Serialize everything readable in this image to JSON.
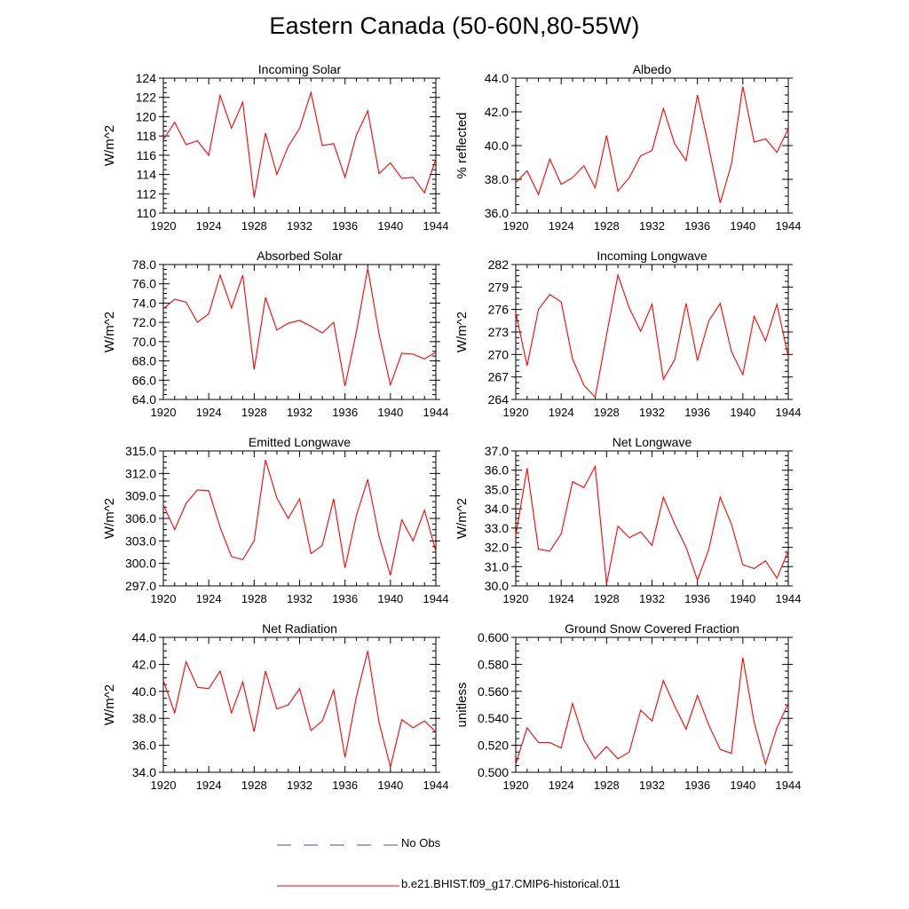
{
  "title": "Eastern Canada (50-60N,80-55W)",
  "legend": [
    {
      "label": "No Obs",
      "color": "#4a4aa8",
      "style": "dashed"
    },
    {
      "label": "b.e21.BHIST.f09_g17.CMIP6-historical.011",
      "color": "#ff0000",
      "style": "solid"
    }
  ],
  "chart_data": [
    {
      "type": "line",
      "title": "Incoming Solar",
      "ylabel": "W/m^2",
      "xlim": [
        1920,
        1944
      ],
      "ylim": [
        110,
        124
      ],
      "xticks": [
        "1920",
        "1924",
        "1928",
        "1932",
        "1936",
        "1940",
        "1944"
      ],
      "yticks": [
        "110",
        "112",
        "114",
        "116",
        "118",
        "120",
        "122",
        "124"
      ],
      "x": [
        1920,
        1921,
        1922,
        1923,
        1924,
        1925,
        1926,
        1927,
        1928,
        1929,
        1930,
        1931,
        1932,
        1933,
        1934,
        1935,
        1936,
        1937,
        1938,
        1939,
        1940,
        1941,
        1942,
        1943,
        1944
      ],
      "series": [
        {
          "name": "b.e21.BHIST.f09_g17.CMIP6-historical.011",
          "color": "#ff0000",
          "values": [
            117.6,
            119.4,
            117.1,
            117.5,
            116.0,
            122.2,
            118.8,
            121.5,
            111.6,
            118.3,
            114.0,
            116.9,
            118.8,
            122.5,
            117.0,
            117.2,
            113.7,
            118.1,
            120.6,
            114.1,
            115.2,
            113.6,
            113.7,
            112.1,
            115.6
          ]
        }
      ]
    },
    {
      "type": "line",
      "title": "Albedo",
      "ylabel": "% reflected",
      "xlim": [
        1920,
        1944
      ],
      "ylim": [
        36,
        44
      ],
      "xticks": [
        "1920",
        "1924",
        "1928",
        "1932",
        "1936",
        "1940",
        "1944"
      ],
      "yticks": [
        "36.0",
        "38.0",
        "40.0",
        "42.0",
        "44.0"
      ],
      "x": [
        1920,
        1921,
        1922,
        1923,
        1924,
        1925,
        1926,
        1927,
        1928,
        1929,
        1930,
        1931,
        1932,
        1933,
        1934,
        1935,
        1936,
        1937,
        1938,
        1939,
        1940,
        1941,
        1942,
        1943,
        1944
      ],
      "series": [
        {
          "name": "b.e21.BHIST.f09_g17.CMIP6-historical.011",
          "color": "#ff0000",
          "values": [
            37.8,
            38.5,
            37.1,
            39.2,
            37.7,
            38.1,
            38.8,
            37.5,
            40.6,
            37.3,
            38.1,
            39.4,
            39.7,
            42.2,
            40.1,
            39.1,
            43.0,
            39.9,
            36.6,
            38.9,
            43.5,
            40.2,
            40.4,
            39.6,
            41.0
          ]
        }
      ]
    },
    {
      "type": "line",
      "title": "Absorbed Solar",
      "ylabel": "W/m^2",
      "xlim": [
        1920,
        1944
      ],
      "ylim": [
        64,
        78
      ],
      "xticks": [
        "1920",
        "1924",
        "1928",
        "1932",
        "1936",
        "1940",
        "1944"
      ],
      "yticks": [
        "64.0",
        "66.0",
        "68.0",
        "70.0",
        "72.0",
        "74.0",
        "76.0",
        "78.0"
      ],
      "x": [
        1920,
        1921,
        1922,
        1923,
        1924,
        1925,
        1926,
        1927,
        1928,
        1929,
        1930,
        1931,
        1932,
        1933,
        1934,
        1935,
        1936,
        1937,
        1938,
        1939,
        1940,
        1941,
        1942,
        1943,
        1944
      ],
      "series": [
        {
          "name": "b.e21.BHIST.f09_g17.CMIP6-historical.011",
          "color": "#ff0000",
          "values": [
            73.4,
            74.4,
            74.1,
            72.0,
            72.9,
            76.9,
            73.5,
            76.9,
            67.1,
            74.6,
            71.2,
            71.9,
            72.2,
            71.6,
            70.9,
            72.0,
            65.4,
            71.0,
            77.6,
            70.8,
            65.5,
            68.8,
            68.7,
            68.2,
            68.9
          ]
        }
      ]
    },
    {
      "type": "line",
      "title": "Incoming Longwave",
      "ylabel": "W/m^2",
      "xlim": [
        1920,
        1944
      ],
      "ylim": [
        264,
        282
      ],
      "xticks": [
        "1920",
        "1924",
        "1928",
        "1932",
        "1936",
        "1940",
        "1944"
      ],
      "yticks": [
        "264",
        "267",
        "270",
        "273",
        "276",
        "279",
        "282"
      ],
      "x": [
        1920,
        1921,
        1922,
        1923,
        1924,
        1925,
        1926,
        1927,
        1928,
        1929,
        1930,
        1931,
        1932,
        1933,
        1934,
        1935,
        1936,
        1937,
        1938,
        1939,
        1940,
        1941,
        1942,
        1943,
        1944
      ],
      "series": [
        {
          "name": "b.e21.BHIST.f09_g17.CMIP6-historical.011",
          "color": "#ff0000",
          "values": [
            275.6,
            268.5,
            276.0,
            278.0,
            277.0,
            269.4,
            265.9,
            264.3,
            272.6,
            280.6,
            276.2,
            273.1,
            276.7,
            266.7,
            269.3,
            276.8,
            269.2,
            274.5,
            276.8,
            270.4,
            267.3,
            275.1,
            271.8,
            276.7,
            269.7
          ]
        }
      ]
    },
    {
      "type": "line",
      "title": "Emitted Longwave",
      "ylabel": "W/m^2",
      "xlim": [
        1920,
        1944
      ],
      "ylim": [
        297,
        315
      ],
      "xticks": [
        "1920",
        "1924",
        "1928",
        "1932",
        "1936",
        "1940",
        "1944"
      ],
      "yticks": [
        "297.0",
        "300.0",
        "303.0",
        "306.0",
        "309.0",
        "312.0",
        "315.0"
      ],
      "x": [
        1920,
        1921,
        1922,
        1923,
        1924,
        1925,
        1926,
        1927,
        1928,
        1929,
        1930,
        1931,
        1932,
        1933,
        1934,
        1935,
        1936,
        1937,
        1938,
        1939,
        1940,
        1941,
        1942,
        1943,
        1944
      ],
      "series": [
        {
          "name": "b.e21.BHIST.f09_g17.CMIP6-historical.011",
          "color": "#ff0000",
          "values": [
            307.8,
            304.5,
            308.0,
            309.8,
            309.7,
            304.8,
            300.9,
            300.5,
            303.0,
            313.8,
            308.7,
            306.0,
            308.6,
            301.3,
            302.4,
            308.6,
            299.4,
            306.4,
            311.2,
            303.6,
            298.4,
            305.8,
            303.0,
            307.1,
            301.6
          ]
        }
      ]
    },
    {
      "type": "line",
      "title": "Net Longwave",
      "ylabel": "W/m^2",
      "xlim": [
        1920,
        1944
      ],
      "ylim": [
        30,
        37
      ],
      "xticks": [
        "1920",
        "1924",
        "1928",
        "1932",
        "1936",
        "1940",
        "1944"
      ],
      "yticks": [
        "30.0",
        "31.0",
        "32.0",
        "33.0",
        "34.0",
        "35.0",
        "36.0",
        "37.0"
      ],
      "x": [
        1920,
        1921,
        1922,
        1923,
        1924,
        1925,
        1926,
        1927,
        1928,
        1929,
        1930,
        1931,
        1932,
        1933,
        1934,
        1935,
        1936,
        1937,
        1938,
        1939,
        1940,
        1941,
        1942,
        1943,
        1944
      ],
      "series": [
        {
          "name": "b.e21.BHIST.f09_g17.CMIP6-historical.011",
          "color": "#ff0000",
          "values": [
            32.6,
            36.1,
            31.9,
            31.8,
            32.7,
            35.4,
            35.1,
            36.2,
            30.1,
            33.1,
            32.5,
            32.8,
            32.1,
            34.6,
            33.2,
            32.0,
            30.3,
            31.9,
            34.6,
            33.2,
            31.1,
            30.9,
            31.3,
            30.4,
            31.8
          ]
        }
      ]
    },
    {
      "type": "line",
      "title": "Net Radiation",
      "ylabel": "W/m^2",
      "xlim": [
        1920,
        1944
      ],
      "ylim": [
        34,
        44
      ],
      "xticks": [
        "1920",
        "1924",
        "1928",
        "1932",
        "1936",
        "1940",
        "1944"
      ],
      "yticks": [
        "34.0",
        "36.0",
        "38.0",
        "40.0",
        "42.0",
        "44.0"
      ],
      "x": [
        1920,
        1921,
        1922,
        1923,
        1924,
        1925,
        1926,
        1927,
        1928,
        1929,
        1930,
        1931,
        1932,
        1933,
        1934,
        1935,
        1936,
        1937,
        1938,
        1939,
        1940,
        1941,
        1942,
        1943,
        1944
      ],
      "series": [
        {
          "name": "b.e21.BHIST.f09_g17.CMIP6-historical.011",
          "color": "#ff0000",
          "values": [
            40.8,
            38.4,
            42.2,
            40.3,
            40.2,
            41.5,
            38.4,
            40.7,
            37.0,
            41.5,
            38.7,
            39.0,
            40.2,
            37.1,
            37.8,
            40.1,
            35.1,
            39.6,
            43.0,
            37.7,
            34.4,
            37.9,
            37.3,
            37.8,
            37.0
          ]
        }
      ]
    },
    {
      "type": "line",
      "title": "Ground Snow Covered Fraction",
      "ylabel": "unitless",
      "xlim": [
        1920,
        1944
      ],
      "ylim": [
        0.5,
        0.6
      ],
      "xticks": [
        "1920",
        "1924",
        "1928",
        "1932",
        "1936",
        "1940",
        "1944"
      ],
      "yticks": [
        "0.500",
        "0.520",
        "0.540",
        "0.560",
        "0.580",
        "0.600"
      ],
      "x": [
        1920,
        1921,
        1922,
        1923,
        1924,
        1925,
        1926,
        1927,
        1928,
        1929,
        1930,
        1931,
        1932,
        1933,
        1934,
        1935,
        1936,
        1937,
        1938,
        1939,
        1940,
        1941,
        1942,
        1943,
        1944
      ],
      "series": [
        {
          "name": "b.e21.BHIST.f09_g17.CMIP6-historical.011",
          "color": "#ff0000",
          "values": [
            0.506,
            0.533,
            0.522,
            0.522,
            0.518,
            0.551,
            0.524,
            0.51,
            0.519,
            0.51,
            0.515,
            0.546,
            0.538,
            0.568,
            0.549,
            0.532,
            0.557,
            0.535,
            0.517,
            0.514,
            0.585,
            0.537,
            0.506,
            0.533,
            0.551
          ]
        }
      ]
    }
  ]
}
